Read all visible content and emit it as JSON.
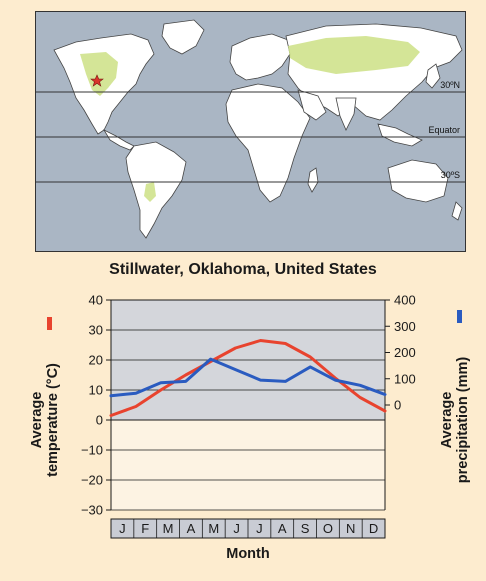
{
  "map": {
    "latitude_labels": [
      "30ºN",
      "Equator",
      "30ºS"
    ],
    "highlight_color": "#cfe28c",
    "ocean_color": "#aab6c4",
    "land_color": "#ffffff",
    "location_marker": "star-icon"
  },
  "chart_data": {
    "type": "line",
    "title": "Stillwater, Oklahoma, United States",
    "xlabel": "Month",
    "categories": [
      "J",
      "F",
      "M",
      "A",
      "M",
      "J",
      "J",
      "A",
      "S",
      "O",
      "N",
      "D"
    ],
    "y_left": {
      "label_line1": "Average",
      "label_line2": "temperature (°C)",
      "ticks": [
        "40",
        "30",
        "20",
        "10",
        "0",
        "−10",
        "−20",
        "−30"
      ],
      "range": [
        -30,
        40
      ]
    },
    "y_right": {
      "label_line1": "Average",
      "label_line2": "precipitation (mm)",
      "ticks": [
        "400",
        "300",
        "200",
        "100",
        "0"
      ],
      "range": [
        -400,
        400
      ]
    },
    "series": [
      {
        "key": "temperature",
        "axis": "left",
        "color": "#e8432e",
        "values": [
          1.5,
          4.5,
          10,
          15,
          19.5,
          24,
          26.5,
          25.5,
          21,
          14,
          7.5,
          3
        ]
      },
      {
        "key": "precipitation",
        "axis": "right",
        "color": "#2a5bc0",
        "values": [
          35,
          45,
          85,
          90,
          175,
          135,
          95,
          90,
          145,
          95,
          75,
          40
        ]
      }
    ],
    "colors": {
      "above_zero_bg": "#d4d6db",
      "below_zero_bg": "#fdf3e3",
      "month_box": "#c9ccd4"
    }
  }
}
